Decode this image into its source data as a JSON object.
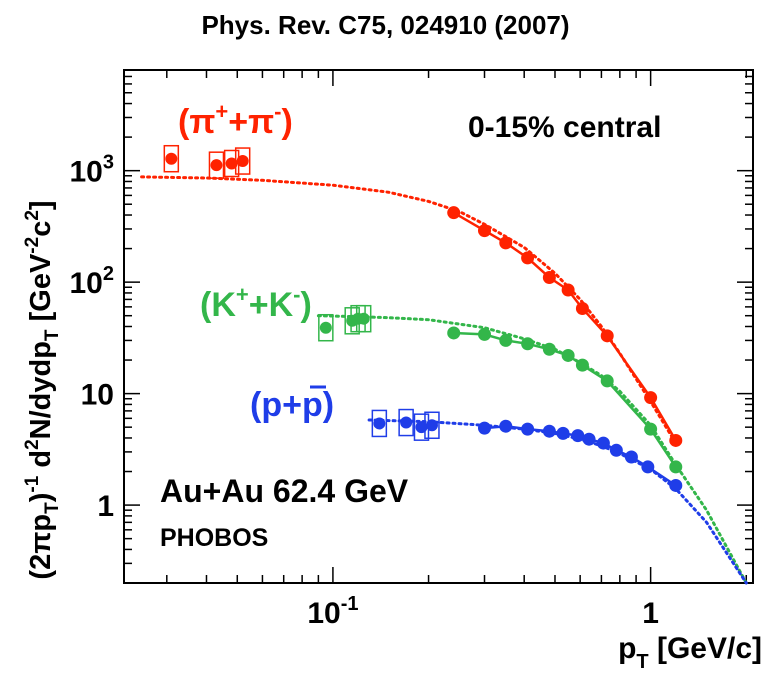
{
  "header": {
    "reference": "Phys. Rev. C75, 024910 (2007)"
  },
  "chart_data": {
    "type": "scatter",
    "xscale": "log",
    "yscale": "log",
    "xlim": [
      0.022,
      2.1
    ],
    "ylim": [
      0.2,
      8000
    ],
    "xticklabels": [
      {
        "v": 0.1,
        "base": "10",
        "exp": "-1"
      },
      {
        "v": 1,
        "base": "1",
        "exp": ""
      }
    ],
    "yticklabels": [
      {
        "v": 1000,
        "base": "10",
        "exp": "3"
      },
      {
        "v": 100,
        "base": "10",
        "exp": "2"
      },
      {
        "v": 10,
        "base": "10",
        "exp": ""
      },
      {
        "v": 1,
        "base": "1",
        "exp": ""
      }
    ],
    "xlabel": {
      "main": "p",
      "sub": "T",
      "rest": " [GeV/c]"
    },
    "ylabel": "(2πpT)-1 d2N/dydpT [GeV-2c2]",
    "annotations": {
      "centrality": "0-15% central",
      "system": "Au+Au 62.4 GeV",
      "experiment": "PHOBOS"
    },
    "series": [
      {
        "name": "(π⁺+π⁻)",
        "label_parts": {
          "open": "(",
          "a": "π",
          "a_sup": "+",
          "mid": "+",
          "b": "π",
          "b_sup": "-",
          "close": ")"
        },
        "color": "#ff2200",
        "low_pt": {
          "x": [
            0.031,
            0.043,
            0.048,
            0.052
          ],
          "y": [
            1280,
            1120,
            1160,
            1220
          ]
        },
        "high_pt": {
          "x": [
            0.24,
            0.3,
            0.35,
            0.41,
            0.48,
            0.55,
            0.61,
            0.73,
            1.0,
            1.2
          ],
          "y": [
            420,
            290,
            225,
            165,
            110,
            85,
            58,
            33,
            9.2,
            3.8
          ]
        },
        "fit": {
          "x": [
            0.025,
            0.04,
            0.06,
            0.1,
            0.15,
            0.2,
            0.25,
            0.3,
            0.4,
            0.5,
            0.6,
            0.7,
            0.8,
            1.0,
            1.2
          ],
          "y": [
            880,
            860,
            820,
            740,
            640,
            530,
            430,
            330,
            205,
            120,
            70,
            40,
            23,
            8.5,
            3.6
          ]
        }
      },
      {
        "name": "(K⁺+K⁻)",
        "label_parts": {
          "open": "(",
          "a": "K",
          "a_sup": "+",
          "mid": "+",
          "b": "K",
          "b_sup": "-",
          "close": ")"
        },
        "color": "#33b64a",
        "low_pt": {
          "x": [
            0.095,
            0.115,
            0.12,
            0.125
          ],
          "y": [
            39,
            45,
            47,
            47
          ]
        },
        "high_pt": {
          "x": [
            0.24,
            0.3,
            0.35,
            0.41,
            0.48,
            0.55,
            0.61,
            0.73,
            1.0,
            1.2
          ],
          "y": [
            35,
            34,
            30,
            28,
            25,
            22,
            18,
            13,
            4.8,
            2.2
          ]
        },
        "fit": {
          "x": [
            0.09,
            0.12,
            0.15,
            0.2,
            0.3,
            0.4,
            0.5,
            0.6,
            0.7,
            0.8,
            1.0,
            1.2,
            1.5,
            2.0
          ],
          "y": [
            50,
            49,
            48,
            46,
            39,
            31,
            25,
            19,
            14.5,
            10.5,
            5.2,
            2.3,
            0.9,
            0.2
          ]
        }
      },
      {
        "name": "(p+p̄)",
        "label_parts": {
          "open": "(",
          "a": "p",
          "a_sup": "",
          "mid": "+",
          "b": "p",
          "b_sup": "",
          "close": ")"
        },
        "color": "#1f3de8",
        "low_pt": {
          "x": [
            0.14,
            0.17,
            0.19,
            0.205
          ],
          "y": [
            5.4,
            5.5,
            5.0,
            5.2
          ]
        },
        "high_pt": {
          "x": [
            0.3,
            0.35,
            0.41,
            0.48,
            0.53,
            0.59,
            0.64,
            0.71,
            0.78,
            0.87,
            0.98,
            1.2
          ],
          "y": [
            4.9,
            5.1,
            4.8,
            4.6,
            4.4,
            4.2,
            3.9,
            3.6,
            3.1,
            2.7,
            2.2,
            1.5
          ]
        },
        "fit": {
          "x": [
            0.13,
            0.2,
            0.3,
            0.4,
            0.5,
            0.6,
            0.7,
            0.8,
            1.0,
            1.2,
            1.5,
            2.0
          ],
          "y": [
            5.8,
            5.6,
            5.2,
            4.8,
            4.4,
            3.9,
            3.4,
            2.9,
            2.1,
            1.4,
            0.7,
            0.2
          ]
        }
      }
    ]
  }
}
